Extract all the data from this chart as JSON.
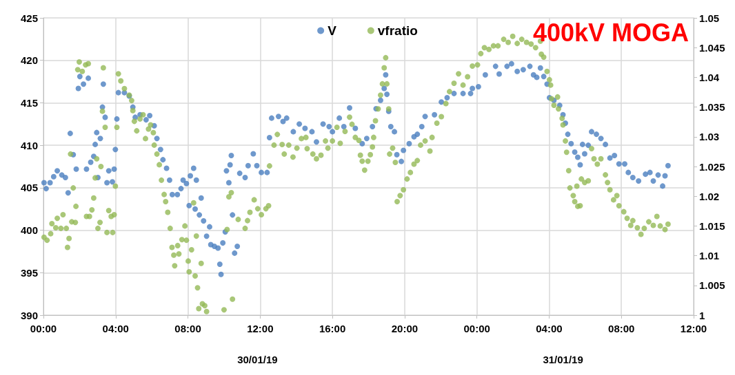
{
  "chart_data": {
    "type": "scatter",
    "title": "400kV MOGA",
    "annotations": [
      "30/01/19",
      "31/01/19"
    ],
    "xlim": [
      "--01-30T00:00",
      "--01-31T12:00"
    ],
    "xticks": [
      {
        "value": "--01-30T00:00",
        "label": "00:00"
      },
      {
        "value": "--01-30T04:00",
        "label": "04:00"
      },
      {
        "value": "--01-30T08:00",
        "label": "08:00"
      },
      {
        "value": "--01-30T12:00",
        "label": "12:00"
      },
      {
        "value": "--01-30T16:00",
        "label": "16:00"
      },
      {
        "value": "--01-30T20:00",
        "label": "20:00"
      },
      {
        "value": "--01-31T00:00",
        "label": "00:00"
      },
      {
        "value": "--01-31T04:00",
        "label": "04:00"
      },
      {
        "value": "--01-31T08:00",
        "label": "08:00"
      },
      {
        "value": "--01-31T12:00",
        "label": "12:00"
      }
    ],
    "ylim": [
      390,
      425
    ],
    "yticks": [
      390,
      395,
      400,
      405,
      410,
      415,
      420,
      425
    ],
    "y2lim": [
      1,
      1.05
    ],
    "y2ticks": [
      1,
      1.005,
      1.01,
      1.015,
      1.02,
      1.025,
      1.03,
      1.035,
      1.04,
      1.045,
      1.05
    ],
    "grid": true,
    "legend": "top",
    "marker": "circle",
    "series": [
      {
        "name": "V",
        "color": "#4a7ebf",
        "x": [
          "--01-30T00:02",
          "--01-30T00:09",
          "--01-30T00:22",
          "--01-30T00:34",
          "--01-30T00:46",
          "--01-30T01:01",
          "--01-30T01:13",
          "--01-30T01:22",
          "--01-30T01:29",
          "--01-30T01:39",
          "--01-30T01:49",
          "--01-30T01:56",
          "--01-30T02:01",
          "--01-30T02:13",
          "--01-30T02:29",
          "--01-30T02:23",
          "--01-30T02:37",
          "--01-30T02:47",
          "--01-30T02:52",
          "--01-30T02:57",
          "--01-30T03:01",
          "--01-30T03:09",
          "--01-30T03:16",
          "--01-30T03:19",
          "--01-30T03:25",
          "--01-30T03:31",
          "--01-30T03:37",
          "--01-30T03:49",
          "--01-30T03:55",
          "--01-30T03:59",
          "--01-30T04:04",
          "--01-30T04:09",
          "--01-30T04:29",
          "--01-30T04:45",
          "--01-30T04:57",
          "--01-30T05:05",
          "--01-30T05:21",
          "--01-30T05:41",
          "--01-30T05:53",
          "--01-30T06:08",
          "--01-30T06:17",
          "--01-30T06:29",
          "--01-30T06:37",
          "--01-30T06:49",
          "--01-30T06:59",
          "--01-30T07:08",
          "--01-30T07:25",
          "--01-30T07:37",
          "--01-30T07:44",
          "--01-30T07:55",
          "--01-30T08:08",
          "--01-30T08:19",
          "--01-30T08:28",
          "--01-30T08:04",
          "--01-30T08:24",
          "--01-30T08:44",
          "--01-30T08:38",
          "--01-30T08:52",
          "--01-30T09:02",
          "--01-30T09:12",
          "--01-30T09:16",
          "--01-30T09:28",
          "--01-30T09:40",
          "--01-30T09:46",
          "--01-30T09:50",
          "--01-30T09:56",
          "--01-30T10:04",
          "--01-30T10:08",
          "--01-30T10:16",
          "--01-30T10:20",
          "--01-30T10:24",
          "--01-30T10:28",
          "--01-30T10:35",
          "--01-30T10:44",
          "--01-30T10:52",
          "--01-30T11:10",
          "--01-30T11:20",
          "--01-30T11:37",
          "--01-30T11:49",
          "--01-30T12:04",
          "--01-30T12:23",
          "--01-30T12:31",
          "--01-30T12:38",
          "--01-30T13:01",
          "--01-30T13:16",
          "--01-30T13:28",
          "--01-30T13:50",
          "--01-30T14:10",
          "--01-30T14:29",
          "--01-30T14:52",
          "--01-30T15:07",
          "--01-30T15:29",
          "--01-30T15:49",
          "--01-30T16:00",
          "--01-30T16:23",
          "--01-30T16:38",
          "--01-30T16:57",
          "--01-30T17:16",
          "--01-30T17:39",
          "--01-30T17:54",
          "--01-30T18:13",
          "--01-30T18:25",
          "--01-30T18:40",
          "--01-30T18:52",
          "--01-30T18:57",
          "--01-30T19:01",
          "--01-30T19:07",
          "--01-30T19:14",
          "--01-30T19:26",
          "--01-30T19:34",
          "--01-30T19:49",
          "--01-30T19:56",
          "--01-30T20:15",
          "--01-30T20:31",
          "--01-30T20:42",
          "--01-30T20:57",
          "--01-30T21:08",
          "--01-30T21:39",
          "--01-30T22:02",
          "--01-30T22:21",
          "--01-30T22:44",
          "--01-30T23:14",
          "--01-30T23:39",
          "--01-30T23:45",
          "--01-31T00:05",
          "--01-31T00:28",
          "--01-31T01:02",
          "--01-31T01:14",
          "--01-31T01:40",
          "--01-31T01:55",
          "--01-31T02:14",
          "--01-31T02:34",
          "--01-31T02:56",
          "--01-31T03:08",
          "--01-31T03:19",
          "--01-31T03:31",
          "--01-31T03:42",
          "--01-31T03:53",
          "--01-31T04:01",
          "--01-31T04:16",
          "--01-31T04:35",
          "--01-31T04:46",
          "--01-31T04:54",
          "--01-31T05:02",
          "--01-31T05:13",
          "--01-31T05:25",
          "--01-31T05:35",
          "--01-31T05:43",
          "--01-31T05:51",
          "--01-31T05:58",
          "--01-31T06:10",
          "--01-31T06:21",
          "--01-31T06:37",
          "--01-31T06:52",
          "--01-31T07:07",
          "--01-31T07:22",
          "--01-31T07:37",
          "--01-31T07:52",
          "--01-31T08:11",
          "--01-31T08:23",
          "--01-31T08:38",
          "--01-31T08:57",
          "--01-31T09:20",
          "--01-31T09:35",
          "--01-31T09:46",
          "--01-31T10:02",
          "--01-31T10:17",
          "--01-31T10:25",
          "--01-31T10:35"
        ],
        "values": [
          405.6,
          404.9,
          405.6,
          406.3,
          407.0,
          406.5,
          406.2,
          404.4,
          411.4,
          408.9,
          407.2,
          416.7,
          418.1,
          417.2,
          417.9,
          407.2,
          408.0,
          408.7,
          410.1,
          411.5,
          406.2,
          410.8,
          414.5,
          417.2,
          413.3,
          405.6,
          407.0,
          405.7,
          407.2,
          409.5,
          413.1,
          416.2,
          416.2,
          415.8,
          414.5,
          413.3,
          413.6,
          413.0,
          413.5,
          412.3,
          410.8,
          409.5,
          408.3,
          407.3,
          405.9,
          404.2,
          404.2,
          404.9,
          405.9,
          405.5,
          406.4,
          407.3,
          405.9,
          402.9,
          402.5,
          403.8,
          401.8,
          401.1,
          399.3,
          400.4,
          398.3,
          398.1,
          397.9,
          396.0,
          394.8,
          398.5,
          399.8,
          407.0,
          405.6,
          407.7,
          408.8,
          401.8,
          397.3,
          398.1,
          406.7,
          406.2,
          407.6,
          409.0,
          407.6,
          406.8,
          406.8,
          410.9,
          413.2,
          413.4,
          412.8,
          413.2,
          411.6,
          412.5,
          412.0,
          411.6,
          410.4,
          412.5,
          412.2,
          411.6,
          413.2,
          412.2,
          414.4,
          412.0,
          410.2,
          410.8,
          412.2,
          414.3,
          415.3,
          416.7,
          418.3,
          416.0,
          414.0,
          412.2,
          411.6,
          408.9,
          408.1,
          409.4,
          410.2,
          411.0,
          411.3,
          412.2,
          413.4,
          413.6,
          415.1,
          415.6,
          416.1,
          416.1,
          416.1,
          416.7,
          416.9,
          418.3,
          419.3,
          418.4,
          419.3,
          419.6,
          418.7,
          418.9,
          419.3,
          418.3,
          418.0,
          419.1,
          418.1,
          417.2,
          415.6,
          415.3,
          414.7,
          413.6,
          412.6,
          411.3,
          410.2,
          409.2,
          408.6,
          407.7,
          410.1,
          409.0,
          410.0,
          411.6,
          411.3,
          410.8,
          410.1,
          408.5,
          408.8,
          407.8,
          407.8,
          406.8,
          406.2,
          405.8,
          406.6,
          406.8,
          405.8,
          406.5,
          405.2,
          406.4,
          407.6
        ]
      },
      {
        "name": "vfratio",
        "color": "#93b956",
        "axis": "y2",
        "x": [
          "--01-30T00:02",
          "--01-30T00:12",
          "--01-30T00:24",
          "--01-30T00:28",
          "--01-30T00:41",
          "--01-30T00:46",
          "--01-30T00:58",
          "--01-30T01:05",
          "--01-30T01:16",
          "--01-30T01:20",
          "--01-30T01:25",
          "--01-30T01:30",
          "--01-30T01:34",
          "--01-30T01:39",
          "--01-30T01:46",
          "--01-30T01:48",
          "--01-30T01:54",
          "--01-30T01:59",
          "--01-30T02:09",
          "--01-30T02:20",
          "--01-30T02:23",
          "--01-30T02:29",
          "--01-30T02:33",
          "--01-30T02:41",
          "--01-30T02:47",
          "--01-30T02:52",
          "--01-30T02:57",
          "--01-30T03:01",
          "--01-30T03:08",
          "--01-30T03:11",
          "--01-30T03:16",
          "--01-30T03:19",
          "--01-30T03:25",
          "--01-30T03:31",
          "--01-30T03:37",
          "--01-30T03:45",
          "--01-30T03:50",
          "--01-30T03:55",
          "--01-30T03:59",
          "--01-30T04:04",
          "--01-30T04:09",
          "--01-30T04:17",
          "--01-30T04:29",
          "--01-30T04:45",
          "--01-30T04:53",
          "--01-30T04:57",
          "--01-30T05:02",
          "--01-30T05:10",
          "--01-30T05:21",
          "--01-30T05:31",
          "--01-30T05:39",
          "--01-30T05:49",
          "--01-30T05:56",
          "--01-30T06:05",
          "--01-30T06:08",
          "--01-30T06:17",
          "--01-30T06:25",
          "--01-30T06:32",
          "--01-30T06:41",
          "--01-30T06:46",
          "--01-30T06:53",
          "--01-30T07:01",
          "--01-30T07:07",
          "--01-30T07:13",
          "--01-30T07:16",
          "--01-30T07:26",
          "--01-30T07:30",
          "--01-30T07:40",
          "--01-30T07:50",
          "--01-30T07:55",
          "--01-30T08:01",
          "--01-30T08:04",
          "--01-30T08:12",
          "--01-30T08:19",
          "--01-30T08:24",
          "--01-30T08:28",
          "--01-30T08:32",
          "--01-30T08:36",
          "--01-30T08:44",
          "--01-30T08:48",
          "--01-30T08:56",
          "--01-30T09:02",
          "--01-30T10:00",
          "--01-30T10:10",
          "--01-30T10:16",
          "--01-30T10:24",
          "--01-30T10:28",
          "--01-30T10:47",
          "--01-30T11:10",
          "--01-30T11:18",
          "--01-30T11:26",
          "--01-30T11:40",
          "--01-30T11:52",
          "--01-30T12:04",
          "--01-30T12:19",
          "--01-30T12:28",
          "--01-30T12:31",
          "--01-30T12:46",
          "--01-30T12:57",
          "--01-30T13:13",
          "--01-30T13:20",
          "--01-30T13:35",
          "--01-30T13:49",
          "--01-30T14:02",
          "--01-30T14:17",
          "--01-30T14:32",
          "--01-30T14:36",
          "--01-30T14:55",
          "--01-30T15:07",
          "--01-30T15:22",
          "--01-30T15:37",
          "--01-30T15:45",
          "--01-30T16:00",
          "--01-30T16:15",
          "--01-30T16:26",
          "--01-30T16:42",
          "--01-30T16:57",
          "--01-30T17:05",
          "--01-30T17:16",
          "--01-30T17:28",
          "--01-30T17:33",
          "--01-30T17:39",
          "--01-30T17:47",
          "--01-30T17:58",
          "--01-30T18:06",
          "--01-30T18:13",
          "--01-30T18:17",
          "--01-30T18:23",
          "--01-30T18:32",
          "--01-30T18:40",
          "--01-30T18:46",
          "--01-30T18:52",
          "--01-30T18:57",
          "--01-30T19:01",
          "--01-30T19:07",
          "--01-30T19:10",
          "--01-30T19:20",
          "--01-30T19:29",
          "--01-30T19:35",
          "--01-30T19:45",
          "--01-30T19:56",
          "--01-30T20:08",
          "--01-30T20:19",
          "--01-30T20:31",
          "--01-30T20:42",
          "--01-30T20:53",
          "--01-30T21:08",
          "--01-30T21:24",
          "--01-30T21:31",
          "--01-30T21:47",
          "--01-30T22:02",
          "--01-30T22:17",
          "--01-30T22:29",
          "--01-30T22:44",
          "--01-30T22:59",
          "--01-30T23:14",
          "--01-30T23:29",
          "--01-30T23:45",
          "--01-31T00:02",
          "--01-31T00:13",
          "--01-31T00:25",
          "--01-31T00:40",
          "--01-31T00:55",
          "--01-31T01:10",
          "--01-31T01:29",
          "--01-31T01:44",
          "--01-31T01:59",
          "--01-31T02:14",
          "--01-31T02:29",
          "--01-31T02:45",
          "--01-31T03:00",
          "--01-31T03:15",
          "--01-31T03:31",
          "--01-31T03:34",
          "--01-31T03:42",
          "--01-31T03:53",
          "--01-31T04:01",
          "--01-31T04:05",
          "--01-31T04:08",
          "--01-31T04:16",
          "--01-31T04:28",
          "--01-31T04:31",
          "--01-31T04:43",
          "--01-31T04:46",
          "--01-31T04:54",
          "--01-31T04:58",
          "--01-31T05:05",
          "--01-31T05:09",
          "--01-31T05:20",
          "--01-31T05:25",
          "--01-31T05:32",
          "--01-31T05:35",
          "--01-31T05:43",
          "--01-31T05:47",
          "--01-31T05:58",
          "--01-31T06:10",
          "--01-31T06:21",
          "--01-31T06:29",
          "--01-31T06:40",
          "--01-31T06:52",
          "--01-31T07:07",
          "--01-31T07:14",
          "--01-31T07:22",
          "--01-31T07:34",
          "--01-31T07:45",
          "--01-31T07:52",
          "--01-31T08:08",
          "--01-31T08:19",
          "--01-31T08:31",
          "--01-31T08:38",
          "--01-31T08:53",
          "--01-31T09:05",
          "--01-31T09:16",
          "--01-31T09:31",
          "--01-31T09:46",
          "--01-31T09:58",
          "--01-31T10:09",
          "--01-31T10:25",
          "--01-31T10:35"
        ],
        "values": [
          1.0131,
          1.0126,
          1.0137,
          1.0154,
          1.0147,
          1.0163,
          1.0146,
          1.0169,
          1.0146,
          1.0114,
          1.0129,
          1.0271,
          1.0157,
          1.0214,
          1.0156,
          1.0183,
          1.0413,
          1.0426,
          1.041,
          1.0421,
          1.0166,
          1.0423,
          1.0166,
          1.0177,
          1.0197,
          1.0231,
          1.0263,
          1.0146,
          1.0156,
          1.025,
          1.0343,
          1.0416,
          1.0316,
          1.0139,
          1.0176,
          1.0166,
          1.0139,
          1.0169,
          1.0217,
          1.0316,
          1.0406,
          1.0394,
          1.0381,
          1.037,
          1.0361,
          1.0344,
          1.0326,
          1.031,
          1.033,
          1.0337,
          1.0297,
          1.0313,
          1.032,
          1.0307,
          1.0286,
          1.0271,
          1.0253,
          1.0227,
          1.0203,
          1.0191,
          1.0173,
          1.0146,
          1.0114,
          1.0101,
          1.0083,
          1.0117,
          1.0103,
          1.0127,
          1.015,
          1.0126,
          1.0091,
          1.0073,
          1.011,
          1.0189,
          1.0066,
          1.0133,
          1.0046,
          1.0011,
          1.0087,
          1.0019,
          1.0016,
          1.0006,
          1.0009,
          1.0144,
          1.0199,
          1.0206,
          1.0027,
          1.0161,
          1.0146,
          1.0159,
          1.0173,
          1.0194,
          1.0179,
          1.0169,
          1.0179,
          1.0184,
          1.0251,
          1.0286,
          1.0304,
          1.0287,
          1.0271,
          1.0286,
          1.0266,
          1.0281,
          1.0297,
          1.0299,
          1.028,
          1.0271,
          1.0263,
          1.0269,
          1.0293,
          1.0281,
          1.0293,
          1.0316,
          1.0289,
          1.0309,
          1.0333,
          1.0321,
          1.0299,
          1.0294,
          1.0269,
          1.0259,
          1.0244,
          1.0259,
          1.027,
          1.0283,
          1.0299,
          1.0327,
          1.0347,
          1.037,
          1.0389,
          1.0416,
          1.0433,
          1.0389,
          1.0347,
          1.0271,
          1.0281,
          1.0257,
          1.0191,
          1.0201,
          1.0211,
          1.0229,
          1.024,
          1.0254,
          1.026,
          1.0286,
          1.0293,
          1.0276,
          1.0299,
          1.0323,
          1.0334,
          1.0356,
          1.0376,
          1.039,
          1.0406,
          1.0387,
          1.0401,
          1.0419,
          1.0421,
          1.044,
          1.045,
          1.0447,
          1.0453,
          1.0453,
          1.0464,
          1.0459,
          1.0469,
          1.0457,
          1.0464,
          1.0459,
          1.0456,
          1.045,
          1.0461,
          1.0439,
          1.0434,
          1.041,
          1.0396,
          1.0387,
          1.0364,
          1.0353,
          1.0367,
          1.0347,
          1.0331,
          1.032,
          1.0293,
          1.0274,
          1.0243,
          1.0214,
          1.0201,
          1.0191,
          1.0217,
          1.0183,
          1.0184,
          1.0229,
          1.0223,
          1.0226,
          1.028,
          1.0263,
          1.0254,
          1.0263,
          1.0236,
          1.0223,
          1.0211,
          1.0194,
          1.0201,
          1.0184,
          1.0174,
          1.0163,
          1.0151,
          1.0159,
          1.0147,
          1.0136,
          1.0146,
          1.0157,
          1.0151,
          1.0166,
          1.015,
          1.0144,
          1.0153
        ]
      }
    ]
  }
}
